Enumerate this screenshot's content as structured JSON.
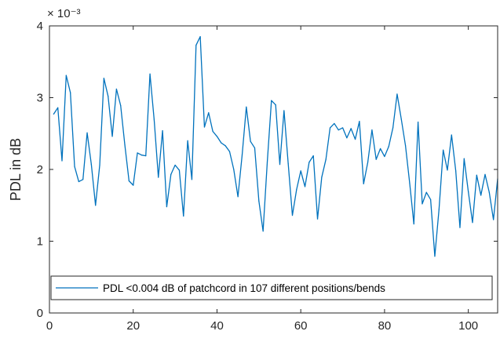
{
  "chart_data": {
    "type": "line",
    "title": "",
    "xlabel": "",
    "ylabel": "PDL in dB",
    "y_exponent": "× 10⁻³",
    "xlim": [
      0,
      107
    ],
    "ylim": [
      0,
      0.004
    ],
    "xticks": [
      0,
      20,
      40,
      60,
      80,
      100
    ],
    "yticks": [
      0,
      0.001,
      0.002,
      0.003,
      0.004
    ],
    "xtick_labels": [
      "0",
      "20",
      "40",
      "60",
      "80",
      "100"
    ],
    "ytick_labels": [
      "0",
      "1",
      "2",
      "3",
      "4"
    ],
    "grid": false,
    "box": true,
    "legend_position": "bottom",
    "series": [
      {
        "name": "PDL <0.004 dB of patchcord in 107 different positions/bends",
        "color": "#0072bd",
        "x": [
          1,
          2,
          3,
          4,
          5,
          6,
          7,
          8,
          9,
          10,
          11,
          12,
          13,
          14,
          15,
          16,
          17,
          18,
          19,
          20,
          21,
          22,
          23,
          24,
          25,
          26,
          27,
          28,
          29,
          30,
          31,
          32,
          33,
          34,
          35,
          36,
          37,
          38,
          39,
          40,
          41,
          42,
          43,
          44,
          45,
          46,
          47,
          48,
          49,
          50,
          51,
          52,
          53,
          54,
          55,
          56,
          57,
          58,
          59,
          60,
          61,
          62,
          63,
          64,
          65,
          66,
          67,
          68,
          69,
          70,
          71,
          72,
          73,
          74,
          75,
          76,
          77,
          78,
          79,
          80,
          81,
          82,
          83,
          84,
          85,
          86,
          87,
          88,
          89,
          90,
          91,
          92,
          93,
          94,
          95,
          96,
          97,
          98,
          99,
          100,
          101,
          102,
          103,
          104,
          105,
          106,
          107
        ],
        "values": [
          0.00277,
          0.00286,
          0.00212,
          0.00331,
          0.00307,
          0.00204,
          0.00183,
          0.00186,
          0.00251,
          0.00207,
          0.0015,
          0.00206,
          0.00327,
          0.00302,
          0.00246,
          0.00312,
          0.00289,
          0.00234,
          0.00184,
          0.00178,
          0.00223,
          0.0022,
          0.00219,
          0.00333,
          0.00269,
          0.00189,
          0.00254,
          0.00148,
          0.00193,
          0.00206,
          0.00199,
          0.00135,
          0.0024,
          0.00186,
          0.00373,
          0.00385,
          0.00259,
          0.00279,
          0.00253,
          0.00246,
          0.00237,
          0.00233,
          0.00225,
          0.002,
          0.00162,
          0.0022,
          0.00287,
          0.00239,
          0.0023,
          0.00156,
          0.00114,
          0.0021,
          0.00296,
          0.0029,
          0.00207,
          0.00282,
          0.00208,
          0.00136,
          0.00172,
          0.00198,
          0.00176,
          0.0021,
          0.00219,
          0.00131,
          0.00189,
          0.00214,
          0.00258,
          0.00264,
          0.00255,
          0.00258,
          0.00244,
          0.00257,
          0.00242,
          0.00267,
          0.0018,
          0.0021,
          0.00255,
          0.00214,
          0.00229,
          0.00218,
          0.00232,
          0.00258,
          0.00305,
          0.0027,
          0.00233,
          0.00181,
          0.00124,
          0.00266,
          0.00152,
          0.00168,
          0.00158,
          0.00079,
          0.00144,
          0.00227,
          0.00199,
          0.00248,
          0.00198,
          0.00119,
          0.00215,
          0.00169,
          0.00126,
          0.00192,
          0.00164,
          0.00193,
          0.00168,
          0.0013,
          0.00187
        ]
      }
    ]
  }
}
